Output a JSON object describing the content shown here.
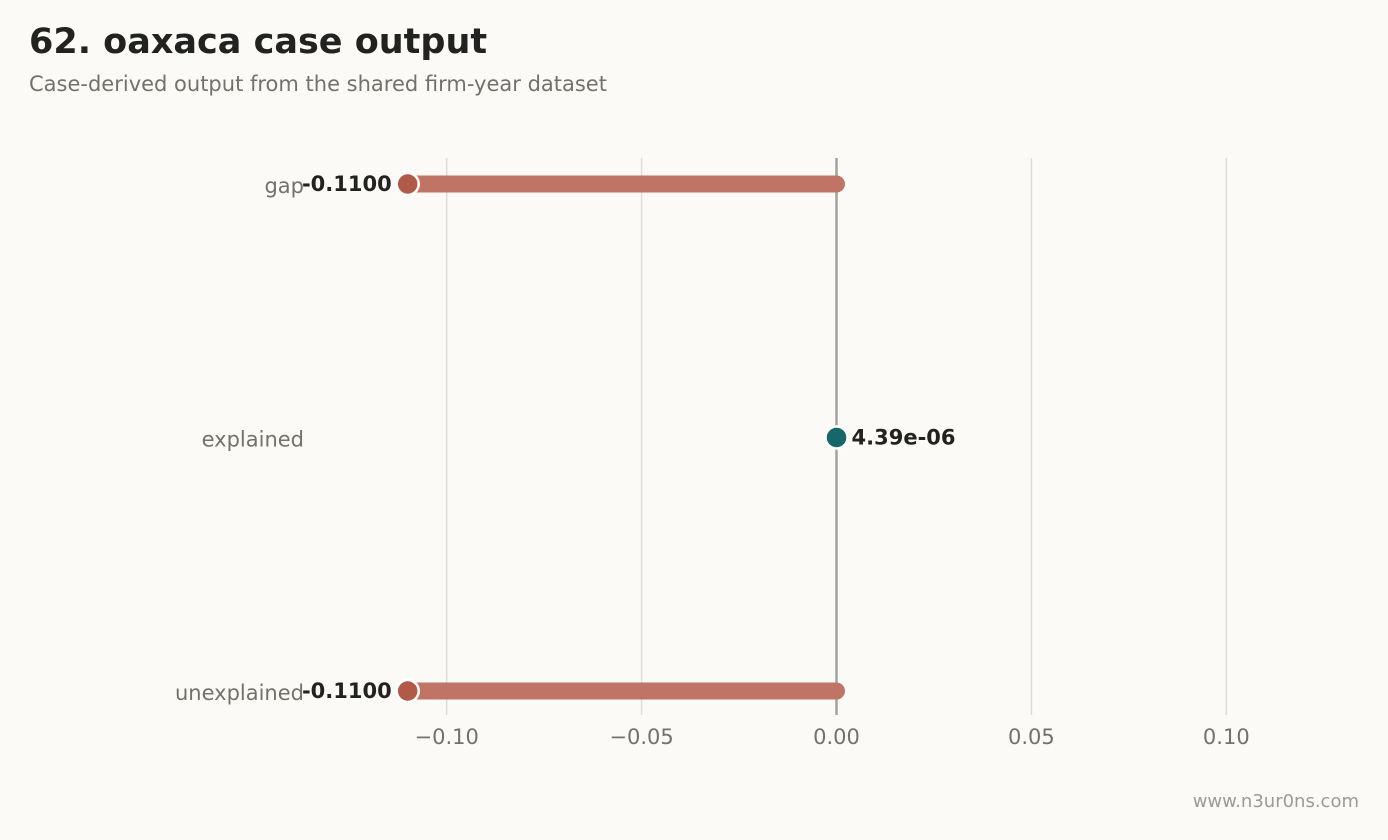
{
  "title": "62. oaxaca case output",
  "subtitle": "Case-derived output from the shared firm-year dataset",
  "footer": "www.n3ur0ns.com",
  "chart_data": {
    "type": "lollipop",
    "orientation": "horizontal",
    "categories": [
      "gap",
      "explained",
      "unexplained"
    ],
    "values": [
      -0.11,
      4.39e-06,
      -0.11
    ],
    "value_labels": [
      "-0.1100",
      "4.39e-06",
      "-0.1100"
    ],
    "xlim": [
      -0.1325,
      0.1325
    ],
    "xticks": [
      -0.1,
      -0.05,
      0.0,
      0.05,
      0.1
    ],
    "xtick_labels": [
      "−0.10",
      "−0.05",
      "0.00",
      "0.05",
      "0.10"
    ],
    "grid": "vertical",
    "colors": {
      "negative_bar": "#c07466",
      "negative_dot": "#b05a47",
      "positive_dot": "#17676a",
      "zero_line": "#a3a29c",
      "grid": "#dddcd6"
    }
  }
}
